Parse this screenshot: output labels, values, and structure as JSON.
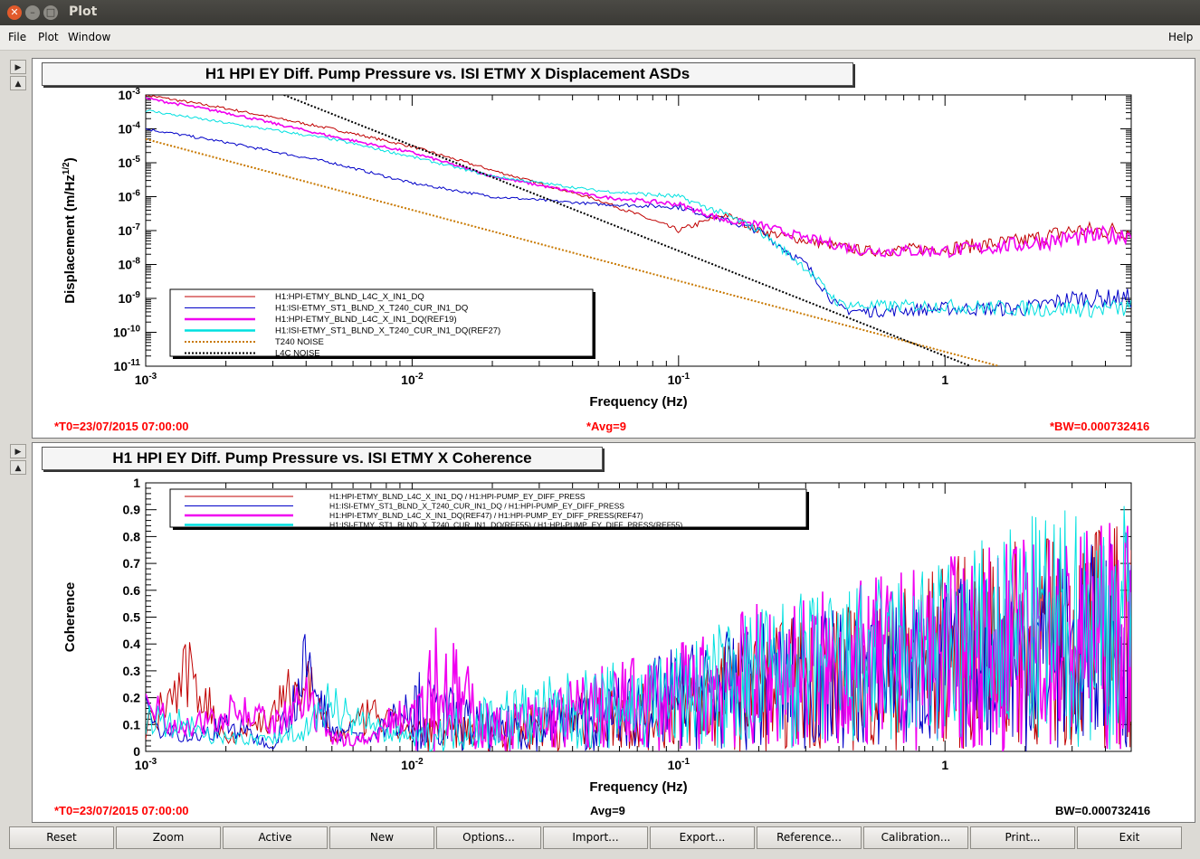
{
  "window": {
    "title": "Plot"
  },
  "menu": {
    "file": "File",
    "plot": "Plot",
    "window": "Window",
    "help": "Help"
  },
  "plot1": {
    "title": "H1 HPI EY Diff. Pump Pressure vs. ISI ETMY X Displacement ASDs",
    "status_t0": "*T0=23/07/2015 07:00:00",
    "status_avg": "*Avg=9",
    "status_bw": "*BW=0.000732416",
    "colors": {
      "red": "#e00000",
      "darkred": "#b00000",
      "blue": "#0000c8",
      "magenta": "#f000f0",
      "cyan": "#00e0e0",
      "orange": "#c87800",
      "black": "#000000"
    }
  },
  "plot2": {
    "title": "H1 HPI EY Diff. Pump Pressure vs. ISI ETMY X Coherence",
    "status_t0": "*T0=23/07/2015 07:00:00",
    "status_avg": "Avg=9",
    "status_bw": "BW=0.000732416"
  },
  "buttons": {
    "reset": "Reset",
    "zoom": "Zoom",
    "active": "Active",
    "new": "New",
    "options": "Options...",
    "import": "Import...",
    "export": "Export...",
    "reference": "Reference...",
    "calibration": "Calibration...",
    "print": "Print...",
    "exit": "Exit"
  },
  "chart_data": [
    {
      "type": "line",
      "title": "H1 HPI EY Diff. Pump Pressure vs. ISI ETMY X Displacement ASDs",
      "xlabel": "Frequency (Hz)",
      "ylabel": "Displacement (m/Hz^{1/2})",
      "xscale": "log",
      "yscale": "log",
      "xlim": [
        0.001,
        5.0
      ],
      "ylim": [
        1e-11,
        0.001
      ],
      "xticks": [
        "10^{-3}",
        "10^{-2}",
        "10^{-1}",
        "1"
      ],
      "yticks": [
        "10^{-3}",
        "10^{-4}",
        "10^{-5}",
        "10^{-6}",
        "10^{-7}",
        "10^{-8}",
        "10^{-9}",
        "10^{-10}",
        "10^{-11}"
      ],
      "legend_position": "bottom-left",
      "grid": true,
      "series": [
        {
          "name": "H1:HPI-ETMY_BLND_L4C_X_IN1_DQ",
          "color": "#c00000",
          "x": [
            0.001,
            0.002,
            0.005,
            0.01,
            0.02,
            0.05,
            0.08,
            0.1,
            0.15,
            0.2,
            0.3,
            0.5,
            1.0,
            2.0,
            3.0,
            5.0
          ],
          "y": [
            0.001,
            0.0004,
            0.0001,
            3e-05,
            6e-06,
            8e-07,
            2e-07,
            1e-07,
            3e-07,
            1e-07,
            5e-08,
            2.5e-08,
            3e-08,
            5e-08,
            1e-07,
            1e-07
          ]
        },
        {
          "name": "H1:ISI-ETMY_ST1_BLND_X_T240_CUR_IN1_DQ",
          "color": "#0000c8",
          "x": [
            0.001,
            0.002,
            0.005,
            0.01,
            0.02,
            0.05,
            0.1,
            0.15,
            0.2,
            0.3,
            0.4,
            0.5,
            1.0,
            2.0,
            3.0,
            5.0
          ],
          "y": [
            0.0001,
            4e-05,
            1e-05,
            2.5e-06,
            1e-06,
            6e-07,
            5e-07,
            2e-07,
            1e-07,
            1e-08,
            5e-10,
            4e-10,
            5e-10,
            5e-10,
            1e-09,
            1e-09
          ]
        },
        {
          "name": "H1:HPI-ETMY_BLND_L4C_X_IN1_DQ(REF19)",
          "color": "#f000f0",
          "x": [
            0.001,
            0.002,
            0.005,
            0.01,
            0.02,
            0.05,
            0.1,
            0.15,
            0.2,
            0.3,
            0.5,
            1.0,
            2.0,
            3.0,
            5.0
          ],
          "y": [
            0.0008,
            0.0003,
            6e-05,
            2e-05,
            4e-06,
            1e-06,
            6e-07,
            2e-07,
            1.5e-07,
            6e-08,
            2.5e-08,
            2.5e-08,
            4e-08,
            6e-08,
            8e-08
          ]
        },
        {
          "name": "H1:ISI-ETMY_ST1_BLND_X_T240_CUR_IN1_DQ(REF27)",
          "color": "#00e0e0",
          "x": [
            0.001,
            0.002,
            0.005,
            0.01,
            0.02,
            0.05,
            0.1,
            0.15,
            0.2,
            0.3,
            0.4,
            0.5,
            1.0,
            2.0,
            3.0,
            5.0
          ],
          "y": [
            0.00035,
            0.00015,
            5e-05,
            1.5e-05,
            4e-06,
            1.5e-06,
            1e-06,
            3e-07,
            1e-07,
            8e-09,
            7e-10,
            6e-10,
            6e-10,
            5e-10,
            5e-10,
            5e-10
          ]
        },
        {
          "name": "T240 NOISE",
          "color": "#c87800",
          "x": [
            0.001,
            1.6
          ],
          "y": [
            5e-05,
            1e-11
          ]
        },
        {
          "name": "L4C NOISE",
          "color": "#000000",
          "x": [
            0.0033,
            1.25
          ],
          "y": [
            0.001,
            1e-11
          ]
        }
      ]
    },
    {
      "type": "line",
      "title": "H1 HPI EY Diff. Pump Pressure vs. ISI ETMY X Coherence",
      "xlabel": "Frequency (Hz)",
      "ylabel": "Coherence",
      "xscale": "log",
      "xlim": [
        0.001,
        5.0
      ],
      "ylim": [
        0,
        1
      ],
      "xticks": [
        "10^{-3}",
        "10^{-2}",
        "10^{-1}",
        "1"
      ],
      "yticks": [
        "0",
        "0.1",
        "0.2",
        "0.3",
        "0.4",
        "0.5",
        "0.6",
        "0.7",
        "0.8",
        "0.9",
        "1"
      ],
      "legend_position": "top-left",
      "series": [
        {
          "name": "H1:HPI-ETMY_BLND_L4C_X_IN1_DQ / H1:HPI-PUMP_EY_DIFF_PRESS",
          "color": "#c00000",
          "x": [
            0.001,
            0.0015,
            0.002,
            0.003,
            0.004,
            0.005,
            0.007,
            0.01,
            0.02,
            0.05,
            0.1,
            0.2,
            0.5,
            1.0,
            2.0,
            5.0
          ],
          "y": [
            0.1,
            0.32,
            0.05,
            0.15,
            0.3,
            0.05,
            0.15,
            0.08,
            0.1,
            0.15,
            0.2,
            0.3,
            0.35,
            0.45,
            0.5,
            0.55
          ]
        },
        {
          "name": "H1:ISI-ETMY_ST1_BLND_X_T240_CUR_IN1_DQ / H1:HPI-PUMP_EY_DIFF_PRESS",
          "color": "#0000c8",
          "x": [
            0.001,
            0.0015,
            0.002,
            0.003,
            0.004,
            0.005,
            0.007,
            0.01,
            0.02,
            0.05,
            0.1,
            0.2,
            0.5,
            1.0,
            2.0,
            5.0
          ],
          "y": [
            0.15,
            0.05,
            0.12,
            0.02,
            0.33,
            0.1,
            0.05,
            0.2,
            0.1,
            0.15,
            0.25,
            0.3,
            0.35,
            0.4,
            0.45,
            0.5
          ]
        },
        {
          "name": "H1:HPI-ETMY_BLND_L4C_X_IN1_DQ(REF47) / H1:HPI-PUMP_EY_DIFF_PRESS(REF47)",
          "color": "#f000f0",
          "x": [
            0.001,
            0.0015,
            0.002,
            0.003,
            0.004,
            0.005,
            0.007,
            0.01,
            0.012,
            0.02,
            0.05,
            0.1,
            0.2,
            0.5,
            1.0,
            2.0,
            5.0
          ],
          "y": [
            0.18,
            0.08,
            0.2,
            0.1,
            0.2,
            0.05,
            0.05,
            0.2,
            0.35,
            0.1,
            0.2,
            0.25,
            0.35,
            0.4,
            0.45,
            0.5,
            0.55
          ]
        },
        {
          "name": "H1:ISI-ETMY_ST1_BLND_X_T240_CUR_IN1_DQ(REF55) / H1:HPI-PUMP_EY_DIFF_PRESS(REF55)",
          "color": "#00e0e0",
          "x": [
            0.001,
            0.0015,
            0.002,
            0.003,
            0.004,
            0.005,
            0.007,
            0.01,
            0.02,
            0.05,
            0.1,
            0.2,
            0.5,
            1.0,
            2.0,
            5.0
          ],
          "y": [
            0.15,
            0.1,
            0.05,
            0.05,
            0.1,
            0.2,
            0.1,
            0.05,
            0.15,
            0.2,
            0.25,
            0.35,
            0.4,
            0.45,
            0.55,
            0.6
          ]
        }
      ]
    }
  ]
}
